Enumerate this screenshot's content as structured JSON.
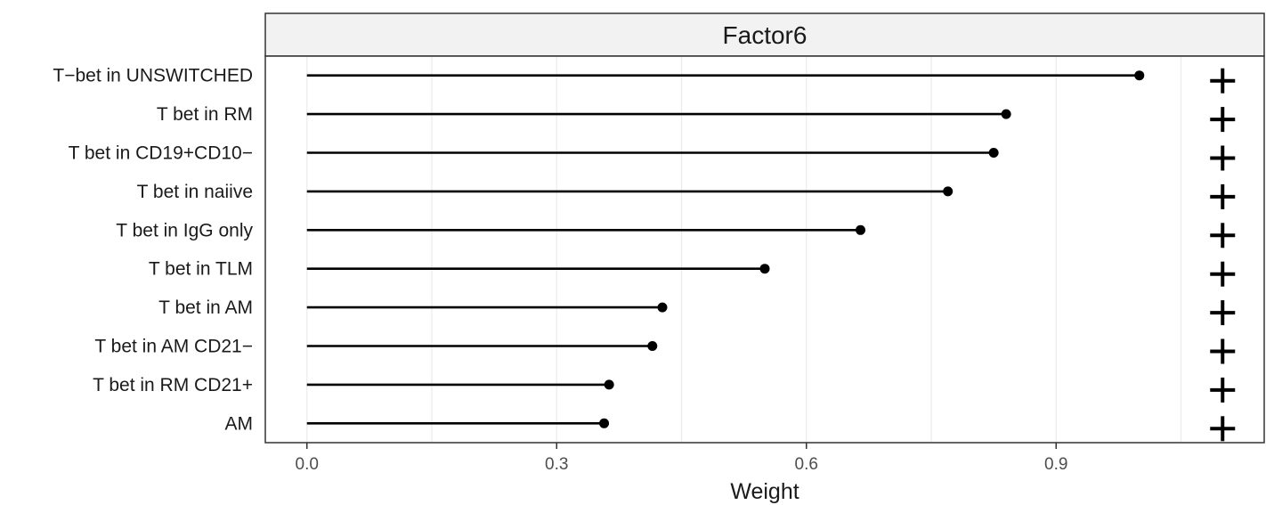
{
  "chart_data": {
    "type": "lollipop",
    "title": "Factor6",
    "xlabel": "Weight",
    "ylabel": "",
    "xlim": [
      -0.05,
      1.15
    ],
    "x_ticks": [
      0.0,
      0.3,
      0.6,
      0.9
    ],
    "x_tick_labels": [
      "0.0",
      "0.3",
      "0.6",
      "0.9"
    ],
    "categories": [
      "T−bet in UNSWITCHED",
      "T bet in RM",
      "T bet in CD19+CD10−",
      "T bet in naiive",
      "T bet in IgG only",
      "T bet in TLM",
      "T bet in AM",
      "T bet in AM CD21−",
      "T bet in RM CD21+",
      "AM"
    ],
    "values": [
      1.0,
      0.84,
      0.825,
      0.77,
      0.665,
      0.55,
      0.427,
      0.415,
      0.363,
      0.357
    ],
    "signs": [
      "+",
      "+",
      "+",
      "+",
      "+",
      "+",
      "+",
      "+",
      "+",
      "+"
    ],
    "grid": true,
    "colors": {
      "mark": "#000000",
      "grid": "#ebebeb",
      "strip": "#f2f2f2",
      "border": "#333333"
    }
  }
}
